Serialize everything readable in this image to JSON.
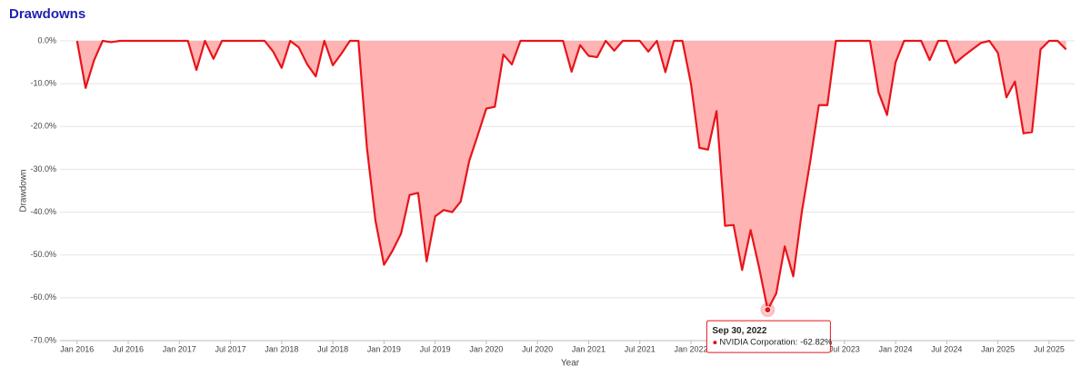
{
  "chart_data": {
    "type": "area",
    "title": "Drawdowns",
    "x_label": "Year",
    "y_label": "Drawdown",
    "x": [
      "2015-12",
      "2016-01",
      "2016-02",
      "2016-03",
      "2016-04",
      "2016-05",
      "2016-06",
      "2016-07",
      "2016-08",
      "2016-09",
      "2016-10",
      "2016-11",
      "2016-12",
      "2017-01",
      "2017-02",
      "2017-03",
      "2017-04",
      "2017-05",
      "2017-06",
      "2017-07",
      "2017-08",
      "2017-09",
      "2017-10",
      "2017-11",
      "2017-12",
      "2018-01",
      "2018-02",
      "2018-03",
      "2018-04",
      "2018-05",
      "2018-06",
      "2018-07",
      "2018-08",
      "2018-09",
      "2018-10",
      "2018-11",
      "2018-12",
      "2019-01",
      "2019-02",
      "2019-03",
      "2019-04",
      "2019-05",
      "2019-06",
      "2019-07",
      "2019-08",
      "2019-09",
      "2019-10",
      "2019-11",
      "2019-12",
      "2020-01",
      "2020-02",
      "2020-03",
      "2020-04",
      "2020-05",
      "2020-06",
      "2020-07",
      "2020-08",
      "2020-09",
      "2020-10",
      "2020-11",
      "2020-12",
      "2021-01",
      "2021-02",
      "2021-03",
      "2021-04",
      "2021-05",
      "2021-06",
      "2021-07",
      "2021-08",
      "2021-09",
      "2021-10",
      "2021-11",
      "2021-12",
      "2022-01",
      "2022-02",
      "2022-03",
      "2022-04",
      "2022-05",
      "2022-06",
      "2022-07",
      "2022-08",
      "2022-09",
      "2022-10",
      "2022-11",
      "2022-12",
      "2023-01",
      "2023-02",
      "2023-03",
      "2023-04",
      "2023-05",
      "2023-06",
      "2023-07",
      "2023-08",
      "2023-09",
      "2023-10",
      "2023-11",
      "2023-12",
      "2024-01",
      "2024-02",
      "2024-03",
      "2024-04",
      "2024-05",
      "2024-06",
      "2024-07",
      "2024-08",
      "2024-09",
      "2024-10",
      "2024-11",
      "2024-12",
      "2025-01",
      "2025-02",
      "2025-03",
      "2025-04",
      "2025-05",
      "2025-06",
      "2025-07",
      "2025-08"
    ],
    "series": [
      {
        "color": "#e8141a",
        "fill": "#ffb3b3",
        "values": [
          0,
          -11,
          -4.5,
          0,
          -0.3,
          0,
          0,
          0,
          0,
          0,
          0,
          0,
          0,
          0,
          -6.8,
          0,
          -4.2,
          0,
          0,
          0,
          0,
          0,
          0,
          -2.5,
          -6.3,
          0,
          -1.5,
          -5.5,
          -8.3,
          0,
          -5.7,
          -3,
          0,
          0,
          -25,
          -42,
          -52.3,
          -49,
          -45,
          -36,
          -35.5,
          -51.5,
          -41,
          -39.5,
          -40,
          -37.5,
          -28,
          -22,
          -15.8,
          -15.4,
          -3.2,
          -5.5,
          0,
          0,
          0,
          0,
          0,
          0,
          -7.2,
          -1,
          -3.5,
          -3.8,
          0,
          -2.3,
          0,
          0,
          0,
          -2.5,
          0,
          -7.3,
          0,
          0,
          -10,
          -25,
          -25.4,
          -16.4,
          -43.2,
          -43,
          -53.5,
          -44.2,
          -53,
          -62.82,
          -59,
          -48,
          -55,
          -40,
          -28,
          -15,
          -15,
          0,
          0,
          0,
          0,
          0,
          -12,
          -17.3,
          -5,
          0,
          0,
          0,
          -4.5,
          0,
          0,
          -5.2,
          -3.5,
          -2,
          -0.5,
          0,
          -2.8,
          -13.2,
          -9.5,
          -21.6,
          -21.3,
          -2,
          0,
          0,
          -2
        ]
      }
    ],
    "xlim": [
      "2015-11",
      "2025-10"
    ],
    "xticks": [
      {
        "value": "2016-01",
        "label": "Jan 2016"
      },
      {
        "value": "2016-07",
        "label": "Jul 2016"
      },
      {
        "value": "2017-01",
        "label": "Jan 2017"
      },
      {
        "value": "2017-07",
        "label": "Jul 2017"
      },
      {
        "value": "2018-01",
        "label": "Jan 2018"
      },
      {
        "value": "2018-07",
        "label": "Jul 2018"
      },
      {
        "value": "2019-01",
        "label": "Jan 2019"
      },
      {
        "value": "2019-07",
        "label": "Jul 2019"
      },
      {
        "value": "2020-01",
        "label": "Jan 2020"
      },
      {
        "value": "2020-07",
        "label": "Jul 2020"
      },
      {
        "value": "2021-01",
        "label": "Jan 2021"
      },
      {
        "value": "2021-07",
        "label": "Jul 2021"
      },
      {
        "value": "2022-01",
        "label": "Jan 2022"
      },
      {
        "value": "2022-07",
        "label": "Jul 2022"
      },
      {
        "value": "2023-01",
        "label": "Jan 2023"
      },
      {
        "value": "2023-07",
        "label": "Jul 2023"
      },
      {
        "value": "2024-01",
        "label": "Jan 2024"
      },
      {
        "value": "2024-07",
        "label": "Jul 2024"
      },
      {
        "value": "2025-01",
        "label": "Jan 2025"
      },
      {
        "value": "2025-07",
        "label": "Jul 2025"
      }
    ],
    "ylim": [
      -70,
      0
    ],
    "yticks": [
      {
        "value": 0,
        "label": "0.0%"
      },
      {
        "value": -10,
        "label": "-10.0%"
      },
      {
        "value": -20,
        "label": "-20.0%"
      },
      {
        "value": -30,
        "label": "-30.0%"
      },
      {
        "value": -40,
        "label": "-40.0%"
      },
      {
        "value": -50,
        "label": "-50.0%"
      },
      {
        "value": -60,
        "label": "-60.0%"
      },
      {
        "value": -70,
        "label": "-70.0%"
      }
    ],
    "grid": true,
    "tooltip": {
      "index": 81,
      "title": "Sep 30, 2022",
      "text": "NVIDIA Corporation: -62.82%"
    }
  }
}
